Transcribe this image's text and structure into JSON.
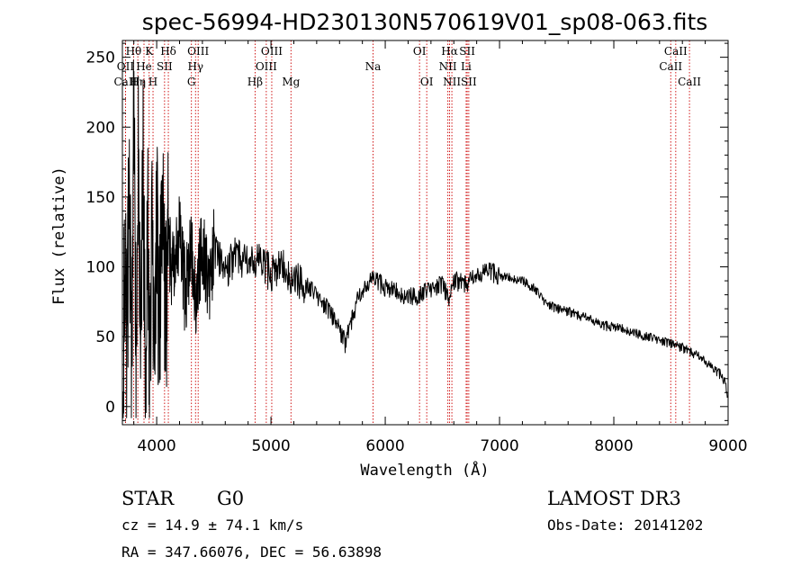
{
  "chart_data": {
    "type": "line",
    "title": "spec-56994-HD230130N570619V01_sp08-063.fits",
    "xlabel": "Wavelength (Å)",
    "ylabel": "Flux (relative)",
    "xlim": [
      3700,
      9000
    ],
    "ylim": [
      -13,
      262
    ],
    "xticks": [
      4000,
      5000,
      6000,
      7000,
      8000,
      9000
    ],
    "yticks": [
      0,
      50,
      100,
      150,
      200,
      250
    ],
    "series": [
      {
        "name": "spectrum",
        "anchors": [
          [
            3705,
            20
          ],
          [
            3720,
            130
          ],
          [
            3740,
            30
          ],
          [
            3760,
            180
          ],
          [
            3780,
            15
          ],
          [
            3800,
            215
          ],
          [
            3820,
            25
          ],
          [
            3840,
            200
          ],
          [
            3860,
            35
          ],
          [
            3880,
            175
          ],
          [
            3900,
            20
          ],
          [
            3920,
            150
          ],
          [
            3940,
            10
          ],
          [
            3960,
            140
          ],
          [
            3980,
            35
          ],
          [
            4000,
            155
          ],
          [
            4020,
            45
          ],
          [
            4050,
            140
          ],
          [
            4080,
            60
          ],
          [
            4100,
            120
          ],
          [
            4150,
            90
          ],
          [
            4200,
            125
          ],
          [
            4250,
            80
          ],
          [
            4300,
            110
          ],
          [
            4350,
            75
          ],
          [
            4400,
            120
          ],
          [
            4450,
            85
          ],
          [
            4500,
            115
          ],
          [
            4600,
            95
          ],
          [
            4700,
            110
          ],
          [
            4800,
            100
          ],
          [
            4900,
            105
          ],
          [
            5000,
            95
          ],
          [
            5100,
            100
          ],
          [
            5200,
            90
          ],
          [
            5300,
            88
          ],
          [
            5400,
            80
          ],
          [
            5500,
            70
          ],
          [
            5600,
            55
          ],
          [
            5650,
            45
          ],
          [
            5700,
            60
          ],
          [
            5750,
            75
          ],
          [
            5800,
            80
          ],
          [
            5850,
            88
          ],
          [
            5900,
            92
          ],
          [
            6000,
            85
          ],
          [
            6100,
            82
          ],
          [
            6200,
            78
          ],
          [
            6300,
            80
          ],
          [
            6400,
            85
          ],
          [
            6500,
            88
          ],
          [
            6560,
            75
          ],
          [
            6600,
            90
          ],
          [
            6700,
            88
          ],
          [
            6800,
            92
          ],
          [
            6850,
            95
          ],
          [
            6900,
            98
          ],
          [
            7000,
            93
          ],
          [
            7100,
            92
          ],
          [
            7200,
            90
          ],
          [
            7300,
            85
          ],
          [
            7400,
            75
          ],
          [
            7500,
            70
          ],
          [
            7600,
            68
          ],
          [
            7700,
            65
          ],
          [
            7800,
            62
          ],
          [
            7900,
            58
          ],
          [
            8000,
            57
          ],
          [
            8100,
            55
          ],
          [
            8200,
            52
          ],
          [
            8300,
            50
          ],
          [
            8400,
            48
          ],
          [
            8500,
            45
          ],
          [
            8600,
            42
          ],
          [
            8700,
            38
          ],
          [
            8800,
            32
          ],
          [
            8900,
            25
          ],
          [
            8950,
            22
          ],
          [
            8980,
            15
          ],
          [
            8995,
            5
          ]
        ]
      }
    ],
    "lines": [
      {
        "label": "Hθ",
        "wave": 3798,
        "row": 0
      },
      {
        "label": "K",
        "wave": 3934,
        "row": 0
      },
      {
        "label": "Hδ",
        "wave": 4102,
        "row": 0
      },
      {
        "label": "OIII",
        "wave": 4363,
        "row": 0
      },
      {
        "label": "OIII",
        "wave": 5007,
        "row": 0
      },
      {
        "label": "OI",
        "wave": 6300,
        "row": 0
      },
      {
        "label": "Hα",
        "wave": 6563,
        "row": 0
      },
      {
        "label": "SII",
        "wave": 6717,
        "row": 0
      },
      {
        "label": "CaII",
        "wave": 8542,
        "row": 0
      },
      {
        "label": "OII",
        "wave": 3727,
        "row": 1
      },
      {
        "label": "He",
        "wave": 3889,
        "row": 1
      },
      {
        "label": "SII",
        "wave": 4069,
        "row": 1
      },
      {
        "label": "Hγ",
        "wave": 4340,
        "row": 1
      },
      {
        "label": "OIII",
        "wave": 4959,
        "row": 1
      },
      {
        "label": "Na",
        "wave": 5893,
        "row": 1
      },
      {
        "label": "NII",
        "wave": 6548,
        "row": 1
      },
      {
        "label": "Li",
        "wave": 6708,
        "row": 1
      },
      {
        "label": "CaII",
        "wave": 8498,
        "row": 1
      },
      {
        "label": "CaII",
        "wave": 3727,
        "row": 2
      },
      {
        "label": "Hη",
        "wave": 3835,
        "row": 2
      },
      {
        "label": "H",
        "wave": 3968,
        "row": 2
      },
      {
        "label": "G",
        "wave": 4304,
        "row": 2
      },
      {
        "label": "Hβ",
        "wave": 4861,
        "row": 2
      },
      {
        "label": "Mg",
        "wave": 5175,
        "row": 2
      },
      {
        "label": "OI",
        "wave": 6363,
        "row": 2
      },
      {
        "label": "NII",
        "wave": 6583,
        "row": 2
      },
      {
        "label": "SII",
        "wave": 6731,
        "row": 2
      },
      {
        "label": "CaII",
        "wave": 8662,
        "row": 2
      }
    ]
  },
  "info": {
    "class_label": "STAR",
    "subclass": "G0",
    "survey": "LAMOST DR3",
    "redshift": "cz = 14.9 ± 74.1 km/s",
    "obs_date": "Obs-Date: 20141202",
    "coords": "RA = 347.66076, DEC =  56.63898"
  },
  "colors": {
    "axis": "#000000",
    "line": "#000000",
    "marker": "#cc0000",
    "background": "#ffffff"
  }
}
